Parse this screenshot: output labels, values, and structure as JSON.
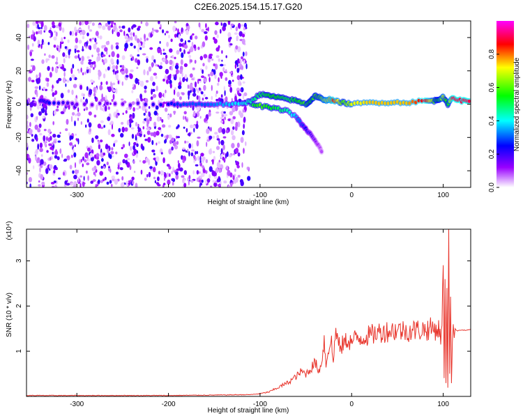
{
  "chart_data": [
    {
      "type": "heatmap",
      "title": "C2E6.2025.154.15.17.G20",
      "xlabel": "Height of straight line (km)",
      "ylabel": "Frequency (Hz)",
      "xlim": [
        -355,
        130
      ],
      "ylim": [
        -50,
        50
      ],
      "x_ticks": [
        -300,
        -200,
        -100,
        0,
        100
      ],
      "y_ticks": [
        -40,
        -20,
        0,
        20,
        40
      ],
      "x_tick_labels": [
        "-300",
        "-200",
        "-100",
        "0",
        "100"
      ],
      "y_tick_labels": [
        "-40",
        "-20",
        "0",
        "20",
        "40"
      ],
      "colorbar": {
        "label": "Normalized spectral amplitude",
        "range": [
          0,
          1
        ],
        "ticks": [
          0.0,
          0.2,
          0.4,
          0.6,
          0.8
        ],
        "tick_labels": [
          "0.0",
          "0.2",
          "0.4",
          "0.6",
          "0.8"
        ],
        "colormap": [
          "#ffffff",
          "#9900ff",
          "#0000ff",
          "#00ffff",
          "#00ff00",
          "#ffff00",
          "#ff0000",
          "#ff00ff"
        ]
      },
      "noise_region_x": [
        -355,
        -115
      ],
      "noise_amplitude": 0.2,
      "signal_trace": {
        "x": [
          -340,
          -330,
          -300,
          -250,
          -200,
          -180,
          -160,
          -140,
          -120,
          -110,
          -100,
          -90,
          -80,
          -70,
          -60,
          -50,
          -45,
          -40,
          -35,
          -30,
          -25,
          -20,
          -10,
          0,
          20,
          40,
          60,
          80,
          90,
          95,
          100,
          105,
          110,
          120,
          130
        ],
        "y": [
          2,
          1,
          0,
          0,
          0,
          0,
          0,
          0,
          0,
          2,
          6,
          5,
          4,
          3,
          2,
          0,
          2,
          5,
          4,
          2,
          3,
          2,
          1,
          0,
          1,
          1,
          1,
          2,
          2,
          3,
          4,
          0,
          4,
          2,
          2
        ],
        "amplitude": [
          0.25,
          0.25,
          0.15,
          0.15,
          0.25,
          0.3,
          0.3,
          0.35,
          0.4,
          0.45,
          0.5,
          0.55,
          0.55,
          0.5,
          0.55,
          0.6,
          0.55,
          0.6,
          0.6,
          0.7,
          0.75,
          0.85,
          0.6,
          0.7,
          0.75,
          0.75,
          0.75,
          0.9,
          0.6,
          0.55,
          0.7,
          0.5,
          0.9,
          0.9,
          0.9
        ]
      },
      "branch_trace": {
        "x": [
          -110,
          -100,
          -90,
          -80,
          -70,
          -60,
          -55,
          -50,
          -45,
          -40,
          -35,
          -32
        ],
        "y": [
          0,
          -1,
          -2,
          -3,
          -4,
          -8,
          -12,
          -15,
          -18,
          -22,
          -26,
          -29
        ],
        "amplitude": [
          0.5,
          0.6,
          0.55,
          0.5,
          0.45,
          0.35,
          0.3,
          0.25,
          0.2,
          0.15,
          0.1,
          0.08
        ]
      },
      "grid": false
    },
    {
      "type": "line",
      "xlabel": "Height of straight line (km)",
      "ylabel": "SNR (10 * v/v)",
      "y_scale_label": "(x10⁴)",
      "xlim": [
        -355,
        130
      ],
      "ylim": [
        0,
        3.7
      ],
      "x_ticks": [
        -300,
        -200,
        -100,
        0,
        100
      ],
      "y_ticks": [
        1,
        2,
        3
      ],
      "x_tick_labels": [
        "-300",
        "-200",
        "-100",
        "0",
        "100"
      ],
      "y_tick_labels": [
        "1",
        "2",
        "3"
      ],
      "series": [
        {
          "color": "#e8332a",
          "x": [
            -355,
            -300,
            -250,
            -200,
            -150,
            -110,
            -100,
            -90,
            -80,
            -70,
            -60,
            -55,
            -50,
            -45,
            -40,
            -35,
            -32,
            -30,
            -28,
            -25,
            -22,
            -20,
            -18,
            -15,
            -12,
            -10,
            -5,
            0,
            5,
            10,
            20,
            30,
            40,
            50,
            60,
            70,
            80,
            90,
            95,
            98,
            100,
            101,
            102,
            103,
            104,
            105,
            106,
            107,
            108,
            109,
            110,
            111,
            112,
            113,
            115,
            120,
            125,
            130
          ],
          "y": [
            0.02,
            0.02,
            0.02,
            0.02,
            0.03,
            0.04,
            0.06,
            0.1,
            0.2,
            0.3,
            0.45,
            0.55,
            0.5,
            0.6,
            0.75,
            0.55,
            0.9,
            1.25,
            0.7,
            1.1,
            1.2,
            0.7,
            1.45,
            1.25,
            1.0,
            1.15,
            1.25,
            1.2,
            1.3,
            1.3,
            1.35,
            1.42,
            1.45,
            1.47,
            1.45,
            1.47,
            1.48,
            1.5,
            1.48,
            1.3,
            2.9,
            0.4,
            2.6,
            0.3,
            2.4,
            0.2,
            3.7,
            0.5,
            2.2,
            0.3,
            1.2,
            1.6,
            1.3,
            1.5,
            1.45,
            1.47,
            1.46,
            1.48
          ]
        }
      ],
      "grid": false
    }
  ]
}
